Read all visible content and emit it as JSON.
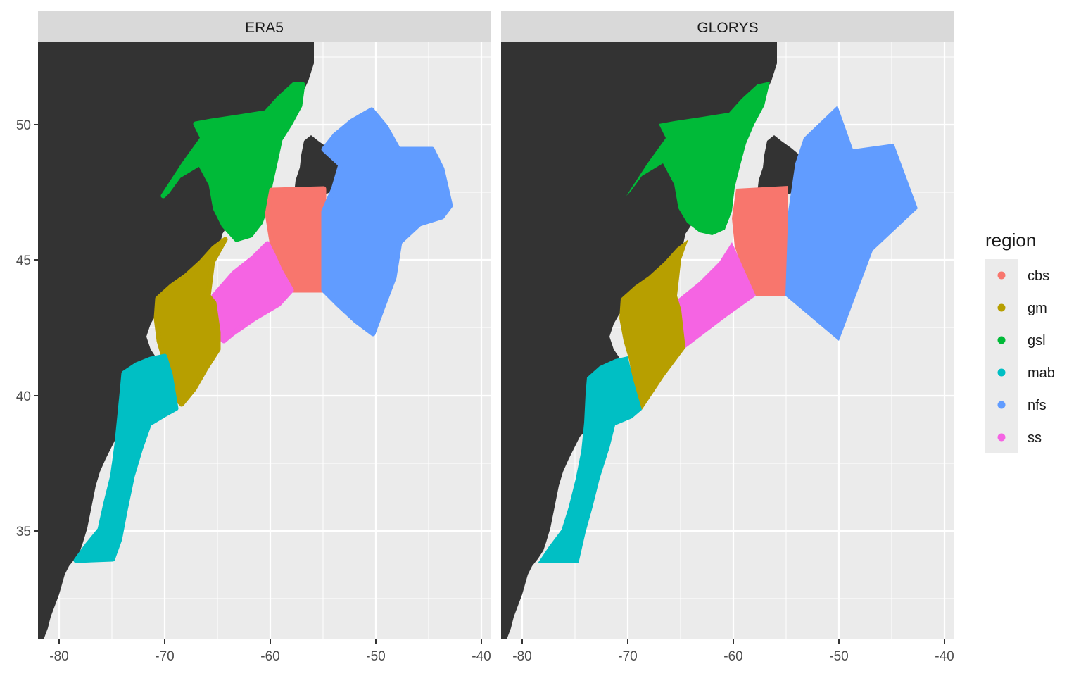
{
  "panels": [
    {
      "id": "era5",
      "strip_label": "ERA5"
    },
    {
      "id": "glorys",
      "strip_label": "GLORYS"
    }
  ],
  "axes": {
    "x_ticks": [
      "-80",
      "-70",
      "-60",
      "-50",
      "-40"
    ],
    "y_ticks": [
      "50",
      "45",
      "40",
      "35"
    ],
    "xlim": [
      -82,
      -39.2
    ],
    "ylim": [
      31.2,
      53
    ]
  },
  "legend": {
    "title": "region",
    "items": [
      {
        "label": "cbs",
        "color": "#F8766D"
      },
      {
        "label": "gm",
        "color": "#B79F00"
      },
      {
        "label": "gsl",
        "color": "#00BA38"
      },
      {
        "label": "mab",
        "color": "#00BFC4"
      },
      {
        "label": "nfs",
        "color": "#619CFF"
      },
      {
        "label": "ss",
        "color": "#F564E3"
      }
    ]
  },
  "colors": {
    "panel_bg": "#EBEBEB",
    "strip_bg": "#D9D9D9",
    "land": "#333333",
    "grid": "#FFFFFF"
  }
}
